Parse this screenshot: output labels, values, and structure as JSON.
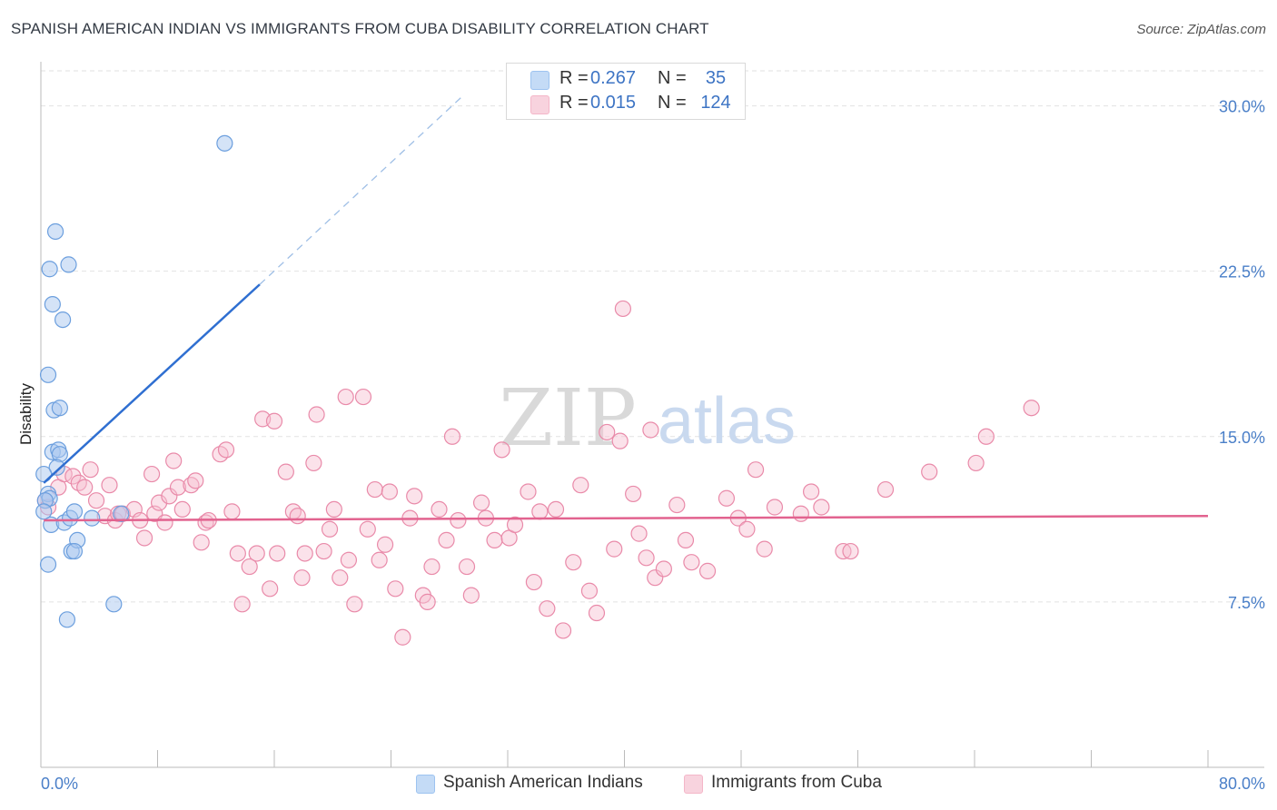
{
  "header": {
    "title": "SPANISH AMERICAN INDIAN VS IMMIGRANTS FROM CUBA DISABILITY CORRELATION CHART",
    "source": "Source: ZipAtlas.com"
  },
  "watermark": {
    "zip": "ZIP",
    "atlas": "atlas"
  },
  "legend": {
    "rows": [
      {
        "r_label": "R =",
        "r_value": "0.267",
        "n_label": "N =",
        "n_value": "35",
        "color": "#9dc3f0"
      },
      {
        "r_label": "R =",
        "r_value": "0.015",
        "n_label": "N =",
        "n_value": "124",
        "color": "#f4b6c8"
      }
    ]
  },
  "bottom_legend": [
    {
      "label": "Spanish American Indians",
      "color": "#9dc3f0"
    },
    {
      "label": "Immigrants from Cuba",
      "color": "#f4b6c8"
    }
  ],
  "chart_data": {
    "type": "scatter",
    "title": "SPANISH AMERICAN INDIAN VS IMMIGRANTS FROM CUBA DISABILITY CORRELATION CHART",
    "xlabel": "",
    "ylabel": "Disability",
    "xlim": [
      0,
      80
    ],
    "ylim": [
      0,
      32
    ],
    "x_tick_labels": [
      "0.0%",
      "80.0%"
    ],
    "y_ticks": [
      7.5,
      15.0,
      22.5,
      30.0
    ],
    "y_tick_labels": [
      "7.5%",
      "15.0%",
      "22.5%",
      "30.0%"
    ],
    "grid": "horizontal dashed",
    "legend_position": "top-center",
    "colors": {
      "blue_fill": "#a9c8f0",
      "blue_line": "#2f6fd1",
      "pink_fill": "#f7bfd0",
      "pink_line": "#e2638f"
    },
    "series": [
      {
        "name": "Spanish American Indians",
        "color": "#a9c8f0",
        "trend": {
          "x": [
            0.2,
            15.0
          ],
          "y": [
            12.9,
            21.9
          ],
          "dashed_to": [
            29.0,
            30.5
          ]
        },
        "points": [
          [
            12.6,
            28.3
          ],
          [
            1.0,
            24.3
          ],
          [
            0.6,
            22.6
          ],
          [
            1.9,
            22.8
          ],
          [
            0.8,
            21.0
          ],
          [
            1.5,
            20.3
          ],
          [
            0.5,
            17.8
          ],
          [
            0.9,
            16.2
          ],
          [
            1.3,
            16.3
          ],
          [
            0.8,
            14.3
          ],
          [
            1.2,
            14.4
          ],
          [
            1.3,
            14.2
          ],
          [
            1.1,
            13.6
          ],
          [
            0.2,
            13.3
          ],
          [
            0.5,
            12.4
          ],
          [
            0.6,
            12.2
          ],
          [
            0.3,
            12.1
          ],
          [
            0.2,
            11.6
          ],
          [
            0.7,
            11.0
          ],
          [
            1.6,
            11.1
          ],
          [
            2.0,
            11.3
          ],
          [
            2.3,
            11.6
          ],
          [
            3.5,
            11.3
          ],
          [
            5.5,
            11.5
          ],
          [
            2.1,
            9.8
          ],
          [
            2.5,
            10.3
          ],
          [
            2.3,
            9.8
          ],
          [
            0.5,
            9.2
          ],
          [
            5.0,
            7.4
          ],
          [
            1.8,
            6.7
          ]
        ]
      },
      {
        "name": "Immigrants from Cuba",
        "color": "#f7bfd0",
        "trend": {
          "x": [
            0.2,
            80.0
          ],
          "y": [
            11.2,
            11.4
          ]
        },
        "points": [
          [
            0.3,
            12.1
          ],
          [
            0.5,
            11.8
          ],
          [
            1.2,
            12.7
          ],
          [
            1.6,
            13.3
          ],
          [
            2.2,
            13.2
          ],
          [
            2.6,
            12.9
          ],
          [
            3.0,
            12.7
          ],
          [
            3.4,
            13.5
          ],
          [
            3.8,
            12.1
          ],
          [
            4.4,
            11.4
          ],
          [
            4.7,
            12.8
          ],
          [
            5.1,
            11.2
          ],
          [
            5.3,
            11.5
          ],
          [
            5.6,
            11.5
          ],
          [
            6.4,
            11.7
          ],
          [
            6.8,
            11.2
          ],
          [
            7.1,
            10.4
          ],
          [
            7.6,
            13.3
          ],
          [
            7.8,
            11.5
          ],
          [
            8.1,
            12.0
          ],
          [
            8.5,
            11.1
          ],
          [
            8.8,
            12.3
          ],
          [
            9.1,
            13.9
          ],
          [
            9.4,
            12.7
          ],
          [
            9.7,
            11.7
          ],
          [
            10.3,
            12.8
          ],
          [
            10.6,
            13.0
          ],
          [
            11.0,
            10.2
          ],
          [
            11.3,
            11.1
          ],
          [
            11.5,
            11.2
          ],
          [
            12.3,
            14.2
          ],
          [
            12.7,
            14.4
          ],
          [
            13.1,
            11.6
          ],
          [
            13.5,
            9.7
          ],
          [
            13.8,
            7.4
          ],
          [
            14.3,
            9.1
          ],
          [
            14.8,
            9.7
          ],
          [
            15.2,
            15.8
          ],
          [
            15.7,
            8.1
          ],
          [
            16.0,
            15.7
          ],
          [
            16.2,
            9.7
          ],
          [
            16.8,
            13.4
          ],
          [
            17.3,
            11.6
          ],
          [
            17.6,
            11.4
          ],
          [
            17.9,
            8.6
          ],
          [
            18.1,
            9.7
          ],
          [
            18.7,
            13.8
          ],
          [
            18.9,
            16.0
          ],
          [
            19.4,
            9.8
          ],
          [
            19.8,
            10.8
          ],
          [
            20.1,
            11.7
          ],
          [
            20.5,
            8.6
          ],
          [
            20.9,
            16.8
          ],
          [
            21.1,
            9.4
          ],
          [
            21.5,
            7.4
          ],
          [
            22.1,
            16.8
          ],
          [
            22.4,
            10.8
          ],
          [
            22.9,
            12.6
          ],
          [
            23.2,
            9.4
          ],
          [
            23.6,
            10.1
          ],
          [
            23.9,
            12.5
          ],
          [
            24.3,
            8.1
          ],
          [
            24.8,
            5.9
          ],
          [
            25.3,
            11.3
          ],
          [
            25.6,
            12.3
          ],
          [
            26.2,
            7.8
          ],
          [
            26.5,
            7.5
          ],
          [
            26.8,
            9.1
          ],
          [
            27.3,
            11.7
          ],
          [
            27.8,
            10.3
          ],
          [
            28.2,
            15.0
          ],
          [
            28.6,
            11.2
          ],
          [
            29.2,
            9.1
          ],
          [
            29.5,
            7.8
          ],
          [
            30.2,
            12.0
          ],
          [
            30.5,
            11.3
          ],
          [
            31.1,
            10.3
          ],
          [
            31.6,
            14.4
          ],
          [
            32.1,
            10.4
          ],
          [
            32.5,
            11.0
          ],
          [
            33.4,
            12.5
          ],
          [
            33.8,
            8.4
          ],
          [
            34.2,
            11.6
          ],
          [
            34.7,
            7.2
          ],
          [
            35.3,
            11.7
          ],
          [
            35.8,
            6.2
          ],
          [
            36.5,
            9.3
          ],
          [
            37.0,
            12.8
          ],
          [
            37.6,
            8.0
          ],
          [
            38.1,
            7.0
          ],
          [
            38.8,
            15.2
          ],
          [
            39.3,
            9.9
          ],
          [
            39.7,
            14.8
          ],
          [
            39.9,
            20.8
          ],
          [
            40.6,
            12.4
          ],
          [
            41.0,
            10.6
          ],
          [
            41.5,
            9.5
          ],
          [
            41.8,
            15.3
          ],
          [
            42.1,
            8.6
          ],
          [
            42.7,
            9.0
          ],
          [
            43.6,
            11.9
          ],
          [
            44.2,
            10.3
          ],
          [
            44.6,
            9.3
          ],
          [
            45.7,
            8.9
          ],
          [
            47.0,
            12.2
          ],
          [
            47.8,
            11.3
          ],
          [
            48.4,
            10.8
          ],
          [
            49.0,
            13.5
          ],
          [
            49.6,
            9.9
          ],
          [
            50.3,
            11.8
          ],
          [
            52.1,
            11.5
          ],
          [
            52.8,
            12.5
          ],
          [
            53.5,
            11.8
          ],
          [
            55.0,
            9.8
          ],
          [
            55.5,
            9.8
          ],
          [
            57.9,
            12.6
          ],
          [
            60.9,
            13.4
          ],
          [
            64.1,
            13.8
          ],
          [
            64.8,
            15.0
          ],
          [
            67.9,
            16.3
          ]
        ]
      }
    ]
  }
}
